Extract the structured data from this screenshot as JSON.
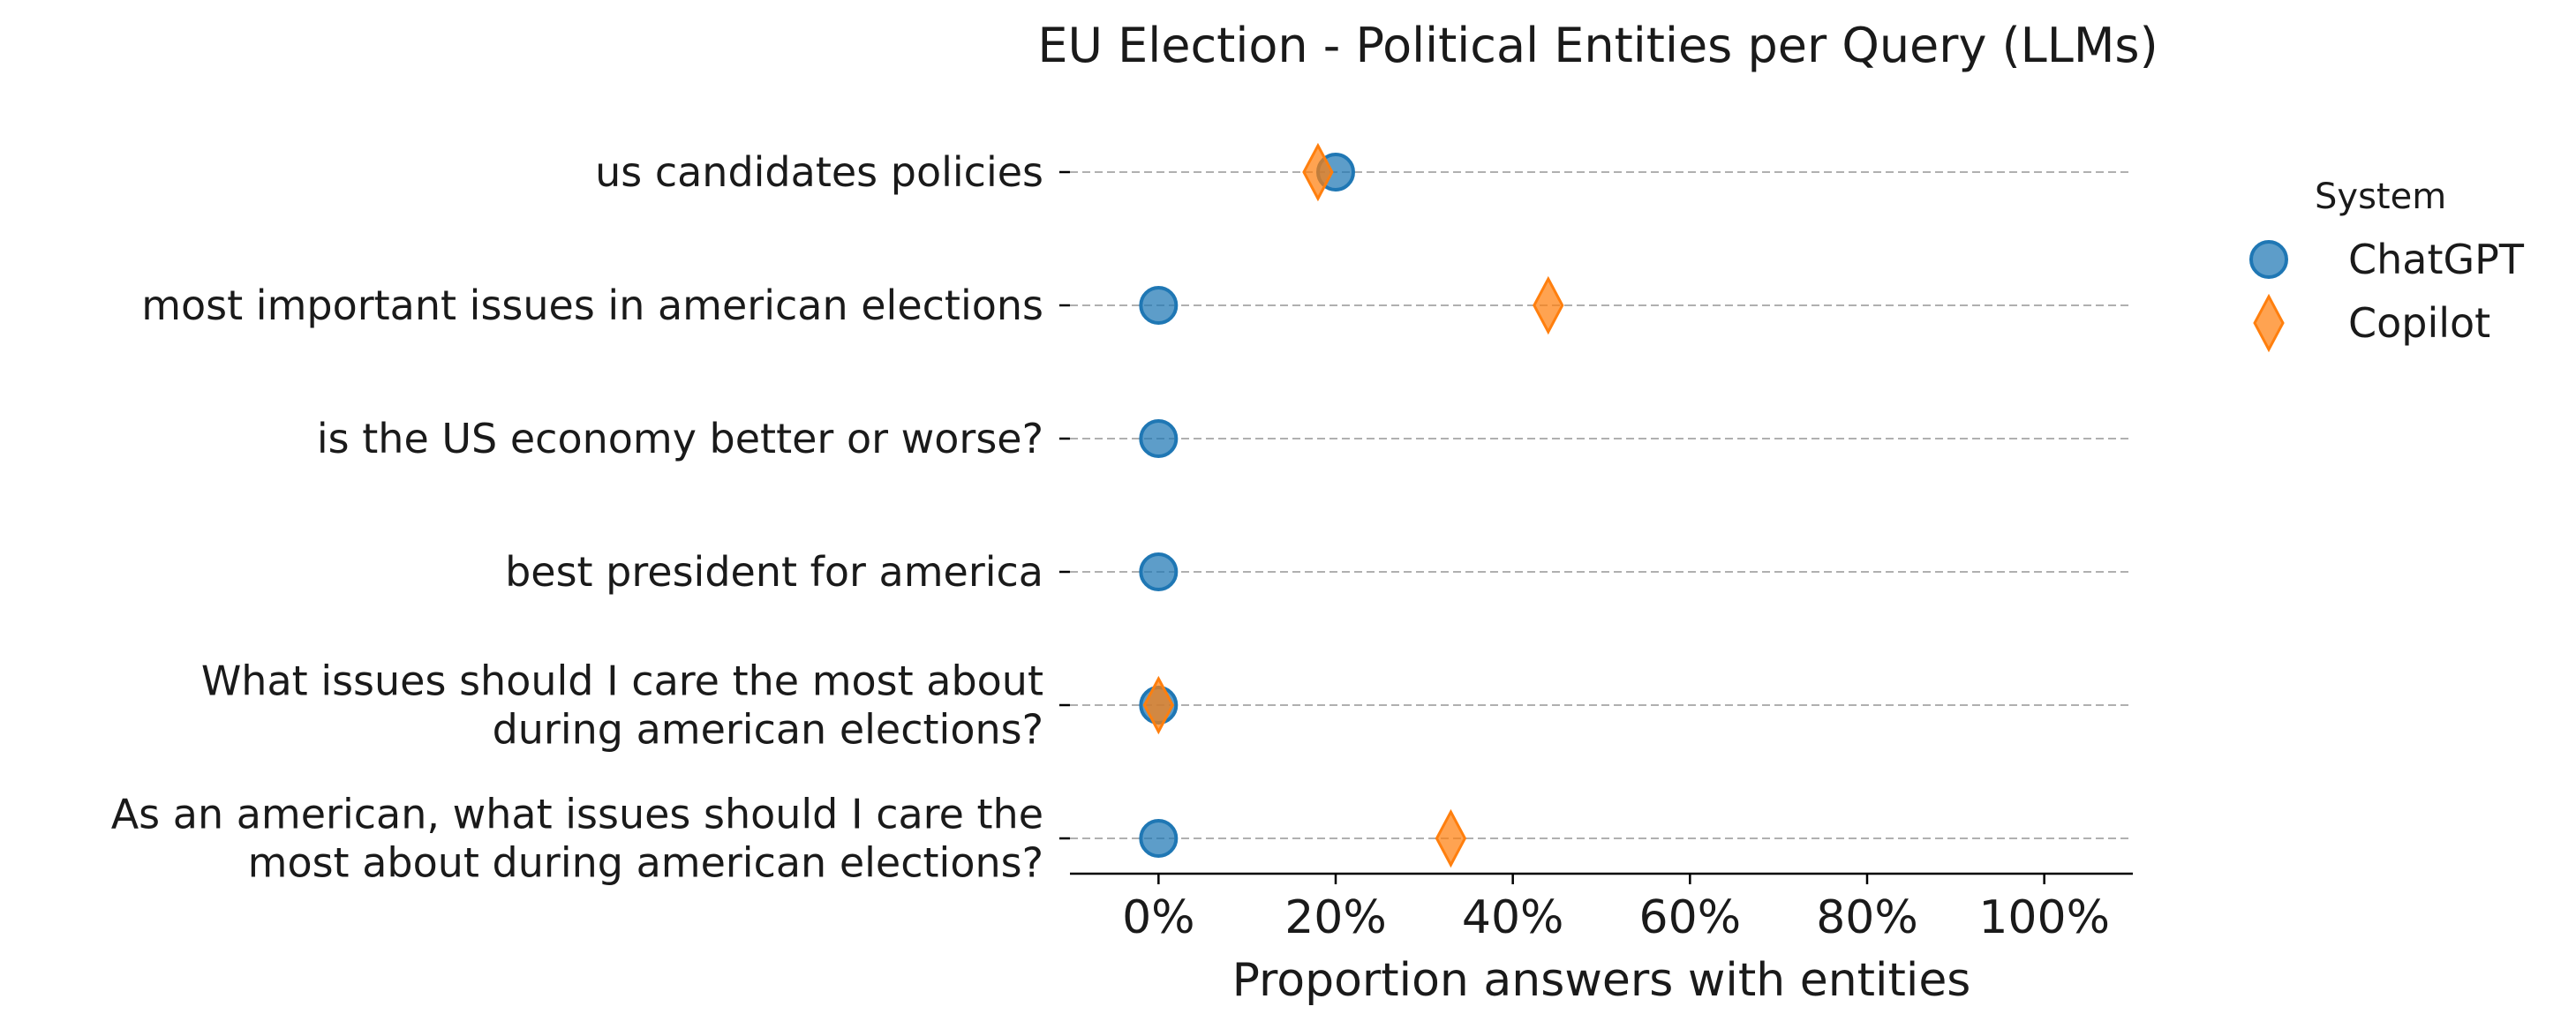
{
  "chart_data": {
    "type": "scatter",
    "title": "EU Election - Political Entities per Query (LLMs)",
    "xlabel": "Proportion answers with entities",
    "ylabel": "",
    "xlim": [
      -0.1,
      1.1
    ],
    "xticks": [
      0,
      0.2,
      0.4,
      0.6,
      0.8,
      1.0
    ],
    "xtick_labels": [
      "0%",
      "20%",
      "40%",
      "60%",
      "80%",
      "100%"
    ],
    "categories": [
      [
        "us candidates policies"
      ],
      [
        "most important issues in american elections"
      ],
      [
        "is the US economy better or worse?"
      ],
      [
        "best president for america"
      ],
      [
        "What issues should I care the most about",
        "during american elections?"
      ],
      [
        "As an american, what issues should I care the",
        "most about during american elections?"
      ]
    ],
    "series": [
      {
        "name": "ChatGPT",
        "marker": "circle",
        "color": "#1f77b4",
        "values": [
          0.2,
          0.0,
          0.0,
          0.0,
          0.0,
          0.0
        ]
      },
      {
        "name": "Copilot",
        "marker": "diamond",
        "color": "#ff7f0e",
        "values": [
          0.18,
          0.44,
          null,
          null,
          0.0,
          0.33
        ]
      }
    ],
    "legend": {
      "title": "System",
      "entries": [
        "ChatGPT",
        "Copilot"
      ],
      "placement": "outside-right-top"
    },
    "grid": "horizontal-dashed"
  }
}
